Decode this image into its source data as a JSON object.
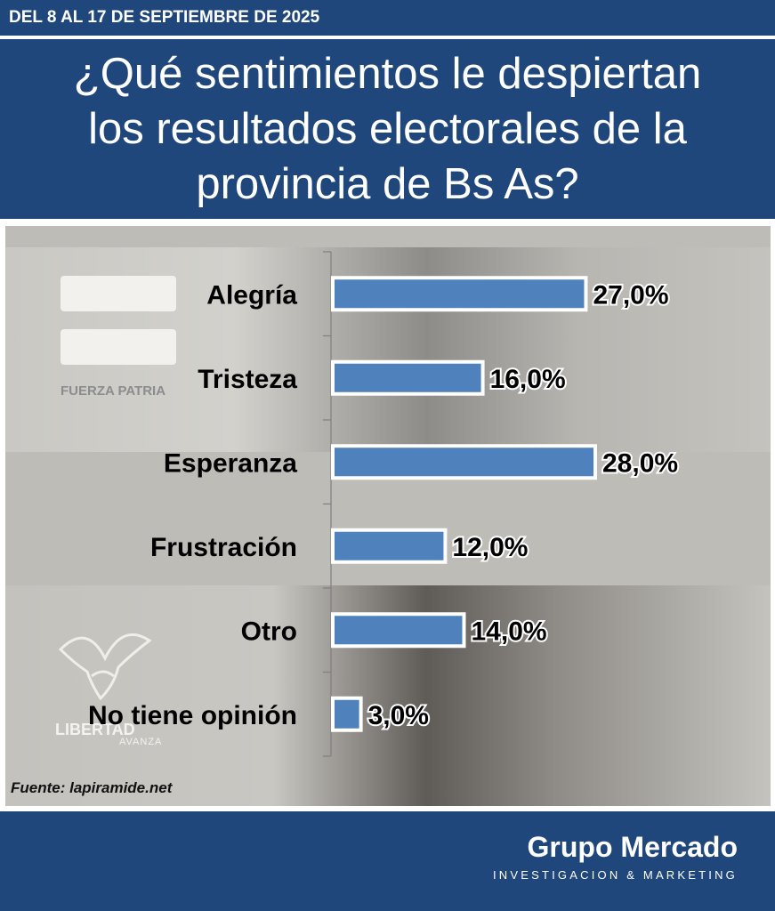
{
  "header": {
    "date_range": "DEL 8 AL 17 DE SEPTIEMBRE DE 2025",
    "title_lines": [
      "¿Qué sentimientos le despiertan",
      "los resultados electorales de la",
      "provincia de Bs As?"
    ]
  },
  "background_logos": {
    "top": "FUERZA PATRIA",
    "bottom_main": "LIBERTAD",
    "bottom_sub": "AVANZA"
  },
  "chart_data": {
    "type": "bar",
    "orientation": "horizontal",
    "categories": [
      "Alegría",
      "Tristeza",
      "Esperanza",
      "Frustración",
      "Otro",
      "No tiene opinión"
    ],
    "values": [
      27.0,
      16.0,
      28.0,
      12.0,
      14.0,
      3.0
    ],
    "value_labels": [
      "27,0%",
      "16,0%",
      "28,0%",
      "12,0%",
      "14,0%",
      "3,0%"
    ],
    "xlim": [
      0,
      28
    ],
    "grid": false,
    "bar_color": "#4f81bd"
  },
  "source": "Fuente: lapiramide.net",
  "footer": {
    "brand": "Grupo Mercado",
    "tagline": "INVESTIGACION & MARKETING"
  },
  "colors": {
    "header_bg": "#1f477c",
    "bar_fill": "#4f81bd",
    "bar_border": "#ffffff"
  }
}
